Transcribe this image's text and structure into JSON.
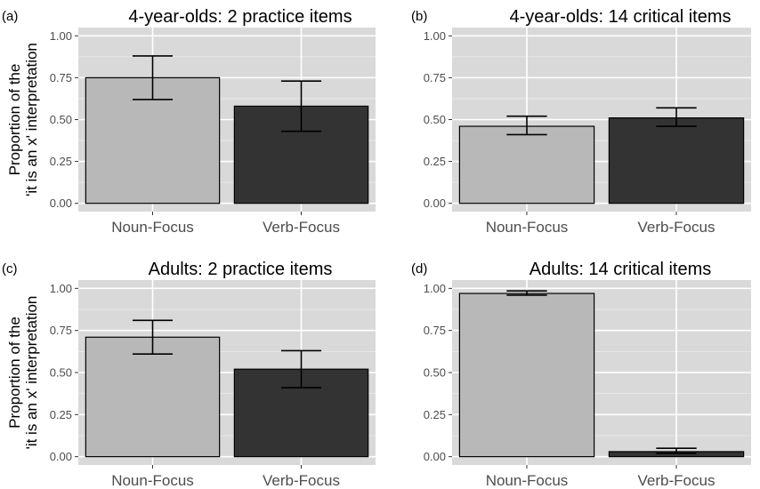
{
  "ylabel_line1": "Proportion of the",
  "ylabel_line2": "'it is an x' interpretation",
  "colors": {
    "panel_bg": "#d9d9d9",
    "grid": "#ffffff",
    "bar_border": "#000000"
  },
  "chart_data": [
    {
      "type": "bar",
      "tag": "(a)",
      "title": "4-year-olds: 2 practice items",
      "categories": [
        "Noun-Focus",
        "Verb-Focus"
      ],
      "values": [
        0.75,
        0.58
      ],
      "error_low": [
        0.62,
        0.43
      ],
      "error_high": [
        0.88,
        0.73
      ],
      "bar_colors": [
        "#b8b8b8",
        "#333333"
      ],
      "ylim": [
        0,
        1
      ],
      "yticks": [
        "0.00",
        "0.25",
        "0.50",
        "0.75",
        "1.00"
      ],
      "show_ylabel": true
    },
    {
      "type": "bar",
      "tag": "(b)",
      "title": "4-year-olds: 14 critical items",
      "categories": [
        "Noun-Focus",
        "Verb-Focus"
      ],
      "values": [
        0.46,
        0.51
      ],
      "error_low": [
        0.41,
        0.46
      ],
      "error_high": [
        0.52,
        0.57
      ],
      "bar_colors": [
        "#b8b8b8",
        "#333333"
      ],
      "ylim": [
        0,
        1
      ],
      "yticks": [
        "0.00",
        "0.25",
        "0.50",
        "0.75",
        "1.00"
      ],
      "show_ylabel": false
    },
    {
      "type": "bar",
      "tag": "(c)",
      "title": "Adults: 2 practice items",
      "categories": [
        "Noun-Focus",
        "Verb-Focus"
      ],
      "values": [
        0.71,
        0.52
      ],
      "error_low": [
        0.61,
        0.41
      ],
      "error_high": [
        0.81,
        0.63
      ],
      "bar_colors": [
        "#b8b8b8",
        "#333333"
      ],
      "ylim": [
        0,
        1
      ],
      "yticks": [
        "0.00",
        "0.25",
        "0.50",
        "0.75",
        "1.00"
      ],
      "show_ylabel": true
    },
    {
      "type": "bar",
      "tag": "(d)",
      "title": "Adults: 14 critical items",
      "categories": [
        "Noun-Focus",
        "Verb-Focus"
      ],
      "values": [
        0.97,
        0.03
      ],
      "error_low": [
        0.96,
        0.02
      ],
      "error_high": [
        0.985,
        0.05
      ],
      "bar_colors": [
        "#b8b8b8",
        "#333333"
      ],
      "ylim": [
        0,
        1
      ],
      "yticks": [
        "0.00",
        "0.25",
        "0.50",
        "0.75",
        "1.00"
      ],
      "show_ylabel": false
    }
  ]
}
